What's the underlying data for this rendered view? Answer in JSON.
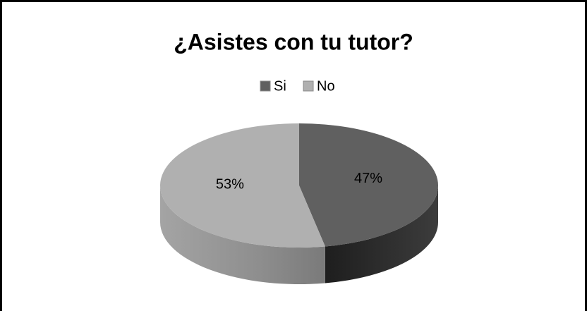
{
  "chart_data": {
    "type": "pie",
    "title": "¿Asistes con tu tutor?",
    "categories": [
      "Si",
      "No"
    ],
    "values": [
      47,
      53
    ],
    "value_labels": [
      "47%",
      "53%"
    ],
    "colors": [
      "#606060",
      "#b0b0b0"
    ],
    "legend": "top"
  }
}
